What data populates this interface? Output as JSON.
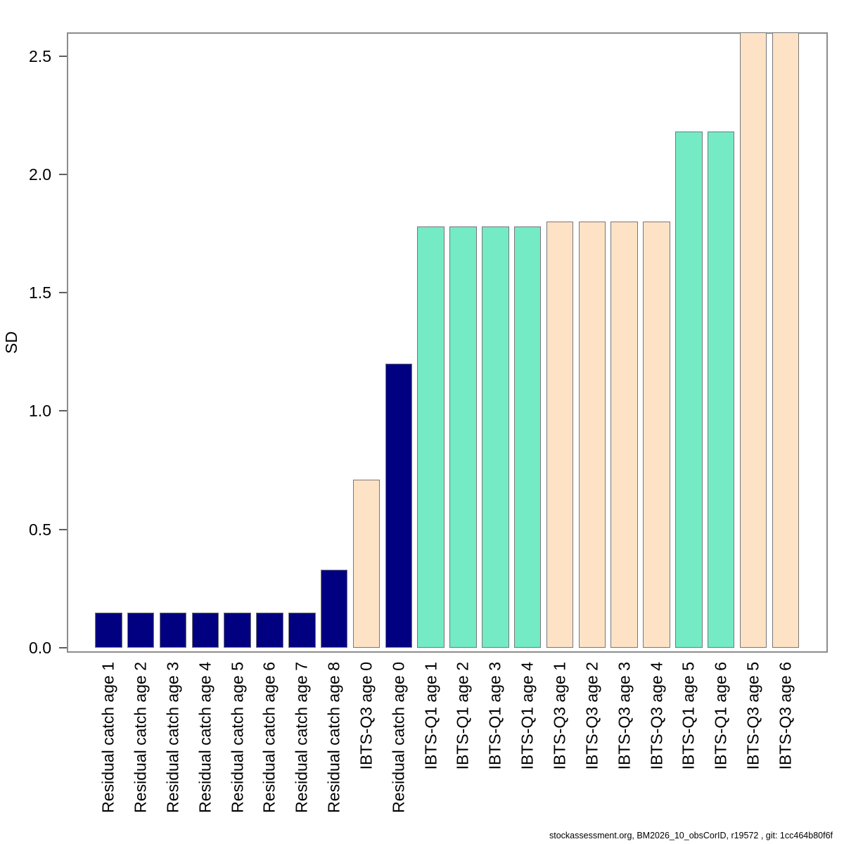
{
  "figure": {
    "background_color": "#ffffff",
    "footer_text": "stockassessment.org, BM2026_10_obsCorID, r19572 , git: 1cc464b80f6f"
  },
  "chart_data": {
    "type": "bar",
    "title": "",
    "xlabel": "",
    "ylabel": "SD",
    "ylim": [
      0,
      2.6
    ],
    "ytick_values": [
      0,
      0.5,
      1,
      1.5,
      2,
      2.5
    ],
    "ytick_labels": [
      "0.0",
      "0.5",
      "1.0",
      "1.5",
      "2.0",
      "2.5"
    ],
    "grid": false,
    "legend_position": "none",
    "bar_edge_color": "#777777",
    "axis_box_color": "#8c8c8c",
    "fleet_colors": {
      "residual_catch": "#000080",
      "ibts_q1": "#74EBC4",
      "ibts_q3": "#FDE2C6"
    },
    "categories": [
      "Residual catch age 1",
      "Residual catch age 2",
      "Residual catch age 3",
      "Residual catch age 4",
      "Residual catch age 5",
      "Residual catch age 6",
      "Residual catch age 7",
      "Residual catch age 8",
      "IBTS-Q3 age 0",
      "Residual catch age 0",
      "IBTS-Q1 age 1",
      "IBTS-Q1 age 2",
      "IBTS-Q1 age 3",
      "IBTS-Q1 age 4",
      "IBTS-Q3 age 1",
      "IBTS-Q3 age 2",
      "IBTS-Q3 age 3",
      "IBTS-Q3 age 4",
      "IBTS-Q1 age 5",
      "IBTS-Q1 age 6",
      "IBTS-Q3 age 5",
      "IBTS-Q3 age 6"
    ],
    "values": [
      0.15,
      0.15,
      0.15,
      0.15,
      0.15,
      0.15,
      0.15,
      0.33,
      0.71,
      1.2,
      1.78,
      1.78,
      1.78,
      1.78,
      1.8,
      1.8,
      1.8,
      1.8,
      2.18,
      2.18,
      2.6,
      2.6
    ],
    "color_keys": [
      "residual_catch",
      "residual_catch",
      "residual_catch",
      "residual_catch",
      "residual_catch",
      "residual_catch",
      "residual_catch",
      "residual_catch",
      "ibts_q3",
      "residual_catch",
      "ibts_q1",
      "ibts_q1",
      "ibts_q1",
      "ibts_q1",
      "ibts_q3",
      "ibts_q3",
      "ibts_q3",
      "ibts_q3",
      "ibts_q1",
      "ibts_q1",
      "ibts_q3",
      "ibts_q3"
    ]
  }
}
